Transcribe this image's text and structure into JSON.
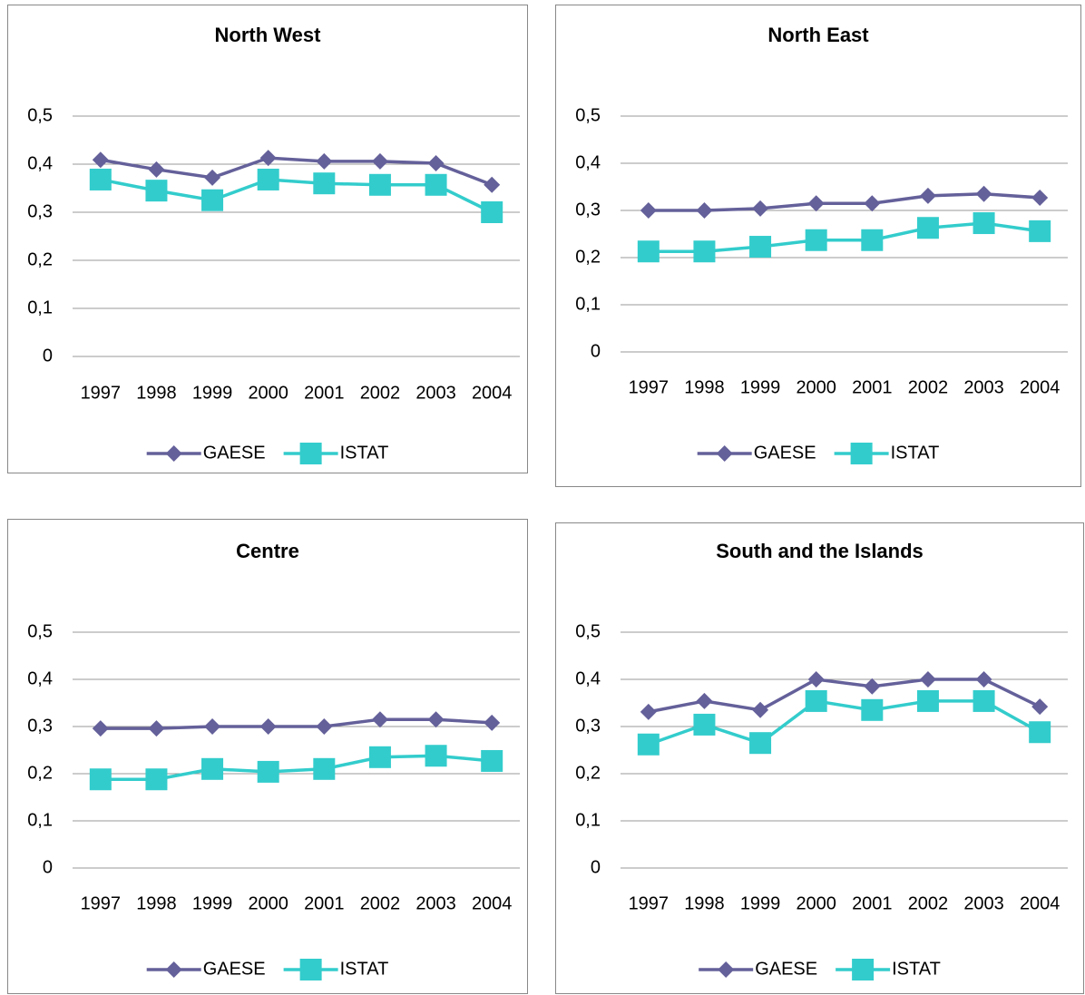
{
  "chart_data": [
    {
      "type": "line",
      "title": "North West",
      "categories": [
        "1997",
        "1998",
        "1999",
        "2000",
        "2001",
        "2002",
        "2003",
        "2004"
      ],
      "series": [
        {
          "name": "GAESE",
          "color": "#64609a",
          "marker": "diamond",
          "values": [
            0.409,
            0.389,
            0.372,
            0.413,
            0.406,
            0.406,
            0.402,
            0.357
          ]
        },
        {
          "name": "ISTAT",
          "color": "#33cccc",
          "marker": "square",
          "values": [
            0.368,
            0.345,
            0.325,
            0.368,
            0.36,
            0.357,
            0.357,
            0.3
          ]
        }
      ],
      "ylim": [
        0,
        0.5
      ],
      "yticks": [
        0,
        {
          "value": 0.1,
          "label": "0,1"
        },
        {
          "value": 0.2,
          "label": "0,2"
        },
        {
          "value": 0.3,
          "label": "0,3"
        },
        {
          "value": 0.4,
          "label": "0,4"
        },
        {
          "value": 0.5,
          "label": "0,5"
        }
      ],
      "grid": true,
      "legend": "bottom"
    },
    {
      "type": "line",
      "title": "North East",
      "categories": [
        "1997",
        "1998",
        "1999",
        "2000",
        "2001",
        "2002",
        "2003",
        "2004"
      ],
      "series": [
        {
          "name": "GAESE",
          "color": "#64609a",
          "marker": "diamond",
          "values": [
            0.3,
            0.3,
            0.304,
            0.315,
            0.315,
            0.331,
            0.335,
            0.327
          ]
        },
        {
          "name": "ISTAT",
          "color": "#33cccc",
          "marker": "square",
          "values": [
            0.213,
            0.213,
            0.223,
            0.237,
            0.237,
            0.263,
            0.273,
            0.256
          ]
        }
      ],
      "ylim": [
        0,
        0.5
      ],
      "yticks": [
        0,
        {
          "value": 0.1,
          "label": "0,1"
        },
        {
          "value": 0.2,
          "label": "0,2"
        },
        {
          "value": 0.3,
          "label": "0,3"
        },
        {
          "value": 0.4,
          "label": "0,4"
        },
        {
          "value": 0.5,
          "label": "0,5"
        }
      ],
      "grid": true,
      "legend": "bottom"
    },
    {
      "type": "line",
      "title": "Centre",
      "categories": [
        "1997",
        "1998",
        "1999",
        "2000",
        "2001",
        "2002",
        "2003",
        "2004"
      ],
      "series": [
        {
          "name": "GAESE",
          "color": "#64609a",
          "marker": "diamond",
          "values": [
            0.296,
            0.296,
            0.3,
            0.3,
            0.3,
            0.315,
            0.315,
            0.308
          ]
        },
        {
          "name": "ISTAT",
          "color": "#33cccc",
          "marker": "square",
          "values": [
            0.188,
            0.188,
            0.21,
            0.204,
            0.21,
            0.235,
            0.238,
            0.227
          ]
        }
      ],
      "ylim": [
        0,
        0.5
      ],
      "yticks": [
        0,
        {
          "value": 0.1,
          "label": "0,1"
        },
        {
          "value": 0.2,
          "label": "0,2"
        },
        {
          "value": 0.3,
          "label": "0,3"
        },
        {
          "value": 0.4,
          "label": "0,4"
        },
        {
          "value": 0.5,
          "label": "0,5"
        }
      ],
      "grid": true,
      "legend": "bottom"
    },
    {
      "type": "line",
      "title": "South and the Islands",
      "categories": [
        "1997",
        "1998",
        "1999",
        "2000",
        "2001",
        "2002",
        "2003",
        "2004"
      ],
      "series": [
        {
          "name": "GAESE",
          "color": "#64609a",
          "marker": "diamond",
          "values": [
            0.331,
            0.354,
            0.335,
            0.4,
            0.385,
            0.4,
            0.4,
            0.342
          ]
        },
        {
          "name": "ISTAT",
          "color": "#33cccc",
          "marker": "square",
          "values": [
            0.262,
            0.304,
            0.265,
            0.354,
            0.335,
            0.354,
            0.354,
            0.288
          ]
        }
      ],
      "ylim": [
        0,
        0.5
      ],
      "yticks": [
        0,
        {
          "value": 0.1,
          "label": "0,1"
        },
        {
          "value": 0.2,
          "label": "0,2"
        },
        {
          "value": 0.3,
          "label": "0,3"
        },
        {
          "value": 0.4,
          "label": "0,4"
        },
        {
          "value": 0.5,
          "label": "0,5"
        }
      ],
      "grid": true,
      "legend": "bottom"
    }
  ]
}
